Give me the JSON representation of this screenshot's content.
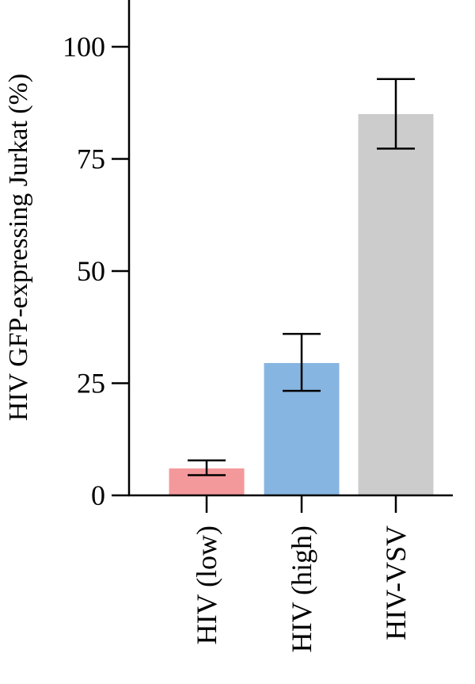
{
  "chart_data": {
    "type": "bar",
    "title": "",
    "xlabel": "",
    "ylabel": "HIV GFP-expressing Jurkat (%)",
    "ylim": [
      0,
      110
    ],
    "yticks": [
      0,
      25,
      50,
      75,
      100
    ],
    "categories": [
      "HIV (low)",
      "HIV (high)",
      "HIV-VSV"
    ],
    "values": [
      6,
      29.5,
      85
    ],
    "error_low": [
      4.5,
      23.3,
      77.3
    ],
    "error_high": [
      7.8,
      36,
      92.8
    ],
    "colors": [
      "#f4999b",
      "#87b5e1",
      "#cccccc"
    ],
    "grid": false,
    "legend": "none"
  }
}
